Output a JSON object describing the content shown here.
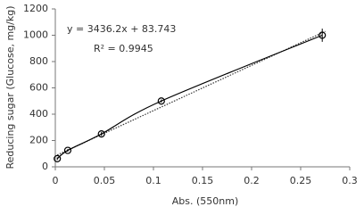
{
  "chart_data": {
    "type": "scatter",
    "x_label": "Abs. (550nm)",
    "y_label": "Reducing sugar (Glucose, mg/kg)",
    "annotations": [
      "y = 3436.2x + 83.743",
      "R² = 0.9945"
    ],
    "series": [
      {
        "color": "#000000",
        "x": [
          0.002,
          0.0127,
          0.047,
          0.108,
          0.272
        ],
        "values": [
          62,
          125,
          250,
          500,
          1000
        ],
        "errors": [
          10,
          10,
          15,
          12,
          50
        ]
      }
    ],
    "trendline": {
      "x": [
        0.002,
        0.275
      ],
      "values": [
        90,
        1029
      ]
    },
    "xlim": [
      0,
      0.3
    ],
    "xticks": [
      0,
      0.05,
      0.1,
      0.15,
      0.2,
      0.25,
      0.3
    ],
    "ylim": [
      0,
      1200
    ],
    "yticks": [
      0,
      200,
      400,
      600,
      800,
      1000,
      1200
    ],
    "grid": false
  }
}
